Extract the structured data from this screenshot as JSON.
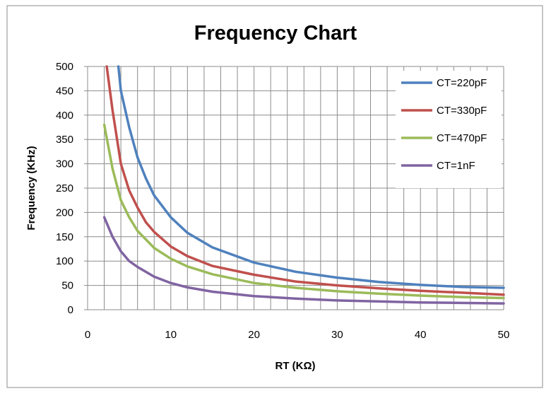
{
  "chart_data": {
    "type": "line",
    "title": "Frequency Chart",
    "xlabel": "RT (KΩ)",
    "ylabel": "Frequency (KHz)",
    "xlim": [
      0,
      50
    ],
    "ylim": [
      0,
      500
    ],
    "x_ticks": [
      0,
      10,
      20,
      30,
      40,
      50
    ],
    "y_ticks": [
      0,
      50,
      100,
      150,
      200,
      250,
      300,
      350,
      400,
      450,
      500
    ],
    "grid": true,
    "legend_position": "top-right",
    "series": [
      {
        "name": "CT=220pF",
        "color": "#4F81BD",
        "x": [
          3.7,
          4,
          5,
          6,
          7,
          8,
          10,
          12,
          15,
          20,
          25,
          30,
          35,
          40,
          45,
          50
        ],
        "y": [
          500,
          450,
          375,
          313,
          270,
          235,
          190,
          158,
          128,
          97,
          78,
          66,
          57,
          51,
          47,
          45
        ]
      },
      {
        "name": "CT=330pF",
        "color": "#C0504D",
        "x": [
          2.3,
          3,
          4,
          5,
          6,
          7,
          8,
          10,
          12,
          15,
          20,
          25,
          30,
          35,
          40,
          45,
          50
        ],
        "y": [
          500,
          410,
          300,
          245,
          210,
          180,
          160,
          130,
          110,
          90,
          72,
          58,
          50,
          44,
          39,
          35,
          31
        ]
      },
      {
        "name": "CT=470pF",
        "color": "#9BBB59",
        "x": [
          2,
          3,
          4,
          5,
          6,
          8,
          10,
          12,
          15,
          20,
          25,
          30,
          35,
          40,
          45,
          50
        ],
        "y": [
          380,
          290,
          225,
          190,
          162,
          127,
          105,
          89,
          73,
          55,
          45,
          38,
          33,
          29,
          26,
          24
        ]
      },
      {
        "name": "CT=1nF",
        "color": "#8064A2",
        "x": [
          2,
          3,
          4,
          5,
          6,
          8,
          10,
          12,
          15,
          20,
          25,
          30,
          35,
          40,
          45,
          50
        ],
        "y": [
          190,
          150,
          120,
          100,
          88,
          68,
          55,
          46,
          37,
          28,
          23,
          19,
          17,
          15,
          14,
          13
        ]
      }
    ]
  }
}
